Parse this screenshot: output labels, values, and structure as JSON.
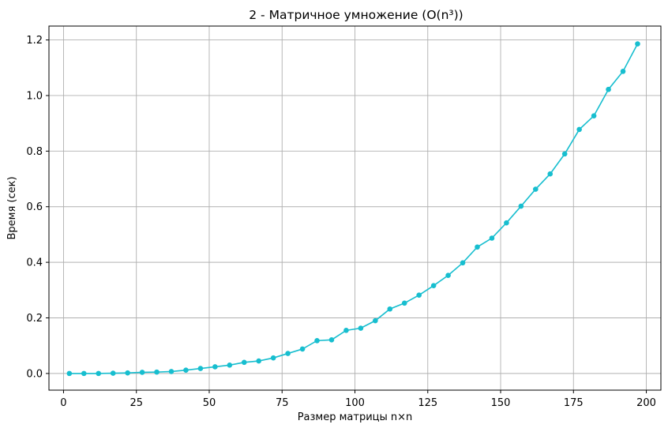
{
  "chart_data": {
    "type": "line",
    "title": "2 - Матричное умножение (O(n³))",
    "xlabel": "Размер матрицы n×n",
    "ylabel": "Время (сек)",
    "xlim": [
      -5,
      205
    ],
    "ylim": [
      -0.06,
      1.25
    ],
    "xticks": [
      0,
      25,
      50,
      75,
      100,
      125,
      150,
      175,
      200
    ],
    "yticks": [
      0.0,
      0.2,
      0.4,
      0.6,
      0.8,
      1.0,
      1.2
    ],
    "xtick_labels": [
      "0",
      "25",
      "50",
      "75",
      "100",
      "125",
      "150",
      "175",
      "200"
    ],
    "ytick_labels": [
      "0.0",
      "0.2",
      "0.4",
      "0.6",
      "0.8",
      "1.0",
      "1.2"
    ],
    "grid": true,
    "color": "#17becf",
    "marker": "circle",
    "x": [
      2,
      7,
      12,
      17,
      22,
      27,
      32,
      37,
      42,
      47,
      52,
      57,
      62,
      67,
      72,
      77,
      82,
      87,
      92,
      97,
      102,
      107,
      112,
      117,
      122,
      127,
      132,
      137,
      142,
      147,
      152,
      157,
      162,
      167,
      172,
      177,
      182,
      187,
      192,
      197
    ],
    "y": [
      0.0,
      0.0,
      0.0,
      0.001,
      0.002,
      0.004,
      0.005,
      0.007,
      0.012,
      0.018,
      0.024,
      0.03,
      0.04,
      0.045,
      0.056,
      0.072,
      0.088,
      0.118,
      0.121,
      0.155,
      0.163,
      0.19,
      0.232,
      0.253,
      0.282,
      0.316,
      0.353,
      0.398,
      0.455,
      0.487,
      0.542,
      0.602,
      0.663,
      0.718,
      0.79,
      0.878,
      0.927,
      1.022,
      1.087,
      1.186
    ]
  }
}
